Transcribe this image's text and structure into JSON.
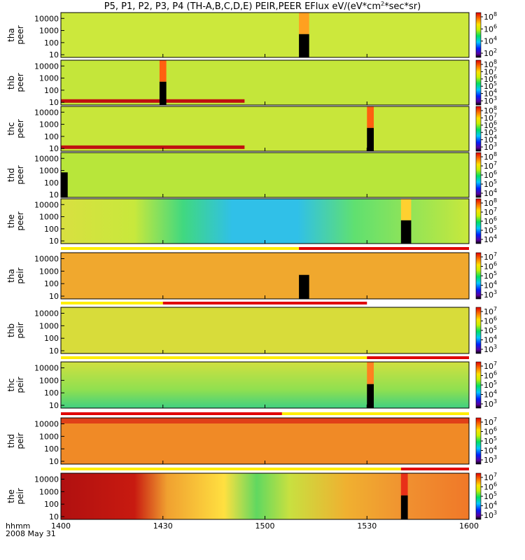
{
  "chart_data": {
    "type": "heatmap",
    "title": "P5, P1, P2, P3, P4 (TH-A,B,C,D,E) PEIR,PEER EFlux eV/(eV*cm^2*sec*sr)",
    "title_parts": {
      "prefix": "P5, P1, P2, P3, P4 (TH-A,B,C,D,E) PEIR,PEER EFlux eV/(eV*cm",
      "sup": "2",
      "suffix": "*sec*sr)"
    },
    "x_axis": {
      "label": "hhmm",
      "date": "2008 May 31",
      "ticks": [
        "1400",
        "1430",
        "1500",
        "1530",
        "1600"
      ],
      "range_minutes": [
        0,
        120
      ]
    },
    "y_axis": {
      "scale": "log",
      "ticks": [
        "10",
        "100",
        "1000",
        "10000"
      ],
      "range": [
        6,
        30000
      ]
    },
    "panels": [
      {
        "probe": "tha",
        "species": "peer",
        "cbar": [
          "2",
          "4",
          "6",
          "8"
        ],
        "fill": "#cce83c"
      },
      {
        "probe": "thb",
        "species": "peer",
        "cbar": [
          "3",
          "4",
          "5",
          "6",
          "7",
          "8"
        ],
        "fill": "#c4e63a"
      },
      {
        "probe": "thc",
        "species": "peer",
        "cbar": [
          "3",
          "4",
          "5",
          "6",
          "7",
          "8"
        ],
        "fill": "#c8e63a"
      },
      {
        "probe": "thd",
        "species": "peer",
        "cbar": [
          "4",
          "5",
          "6",
          "7",
          "8"
        ],
        "fill": "#b8e63a"
      },
      {
        "probe": "the",
        "species": "peer",
        "cbar": [
          "4",
          "5",
          "6",
          "7",
          "8"
        ],
        "fill": "#c0e43a"
      },
      {
        "probe": "tha",
        "species": "peir",
        "cbar": [
          "3",
          "4",
          "5",
          "6",
          "7"
        ],
        "fill": "#f0a82e"
      },
      {
        "probe": "thb",
        "species": "peir",
        "cbar": [
          "3",
          "4",
          "5",
          "6",
          "7"
        ],
        "fill": "#d8dc3a"
      },
      {
        "probe": "thc",
        "species": "peir",
        "cbar": [
          "3",
          "4",
          "5",
          "6",
          "7"
        ],
        "fill": "#c0e03a"
      },
      {
        "probe": "thd",
        "species": "peir",
        "cbar": [
          "3",
          "4",
          "5",
          "6",
          "7"
        ],
        "fill": "#f08a26"
      },
      {
        "probe": "the",
        "species": "peir",
        "cbar": [
          "3",
          "4",
          "5",
          "6",
          "7"
        ],
        "fill": "#e8c232"
      }
    ]
  }
}
